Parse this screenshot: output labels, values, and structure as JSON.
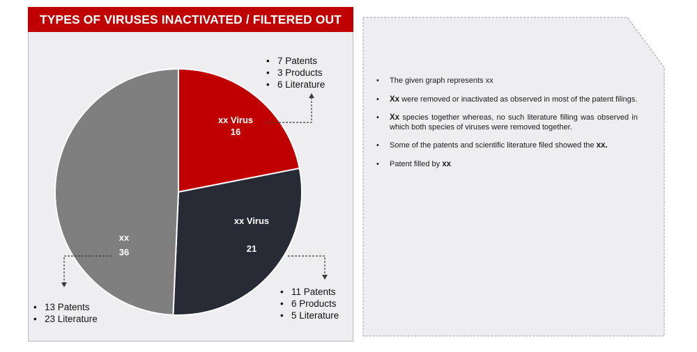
{
  "chart_data": {
    "type": "pie",
    "title": "TYPES OF VIRUSES INACTIVATED / FILTERED OUT",
    "slices": [
      {
        "label": "xx Virus",
        "value": 16,
        "color": "#c00000",
        "notes": [
          "7 Patents",
          "3 Products",
          "6 Literature"
        ]
      },
      {
        "label": "xx Virus",
        "value": 21,
        "color": "#262b35",
        "notes": [
          "11 Patents",
          "6 Products",
          "5 Literature"
        ]
      },
      {
        "label": "xx",
        "value": 36,
        "color": "#7f7f7f",
        "notes": [
          "13 Patents",
          "23 Literature"
        ]
      }
    ]
  },
  "description": [
    {
      "bold": "",
      "text": "The given graph represents xx"
    },
    {
      "bold": "Xx",
      "text": " were removed or inactivated as observed in most of the patent filings."
    },
    {
      "bold": "Xx",
      "text": " species together whereas, no such literature filling was observed in which both species of viruses were removed together."
    },
    {
      "bold": "",
      "text": "Some of the patents and scientific literature filed showed the ",
      "bold_end": "xx."
    },
    {
      "bold": "",
      "text": "Patent filled by ",
      "bold_end": "xx"
    }
  ]
}
